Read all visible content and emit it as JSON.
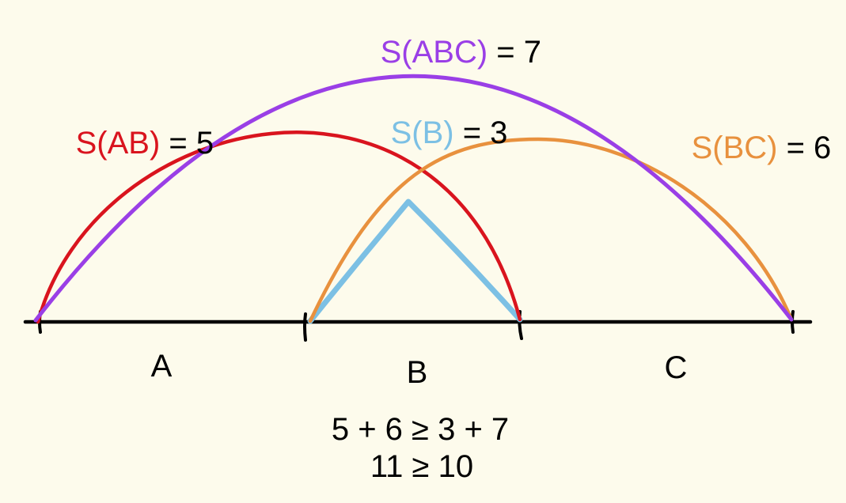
{
  "colors": {
    "background": "#fdfbec",
    "abc": "#9a3fe6",
    "ab": "#d9141e",
    "b": "#7cc0e4",
    "bc": "#e8913e",
    "ink": "#000000"
  },
  "labels": {
    "abc": {
      "term": "S(ABC)",
      "rest": " = 7"
    },
    "ab": {
      "term": "S(AB)",
      "rest": " = 5"
    },
    "b": {
      "term": "S(B)",
      "rest": " = 3"
    },
    "bc": {
      "term": "S(BC)",
      "rest": " = 6"
    }
  },
  "segments": {
    "a": "A",
    "b": "B",
    "c": "C"
  },
  "inequality": {
    "line1": "5 + 6 ≥ 3 + 7",
    "line2": "11 ≥ 10"
  }
}
